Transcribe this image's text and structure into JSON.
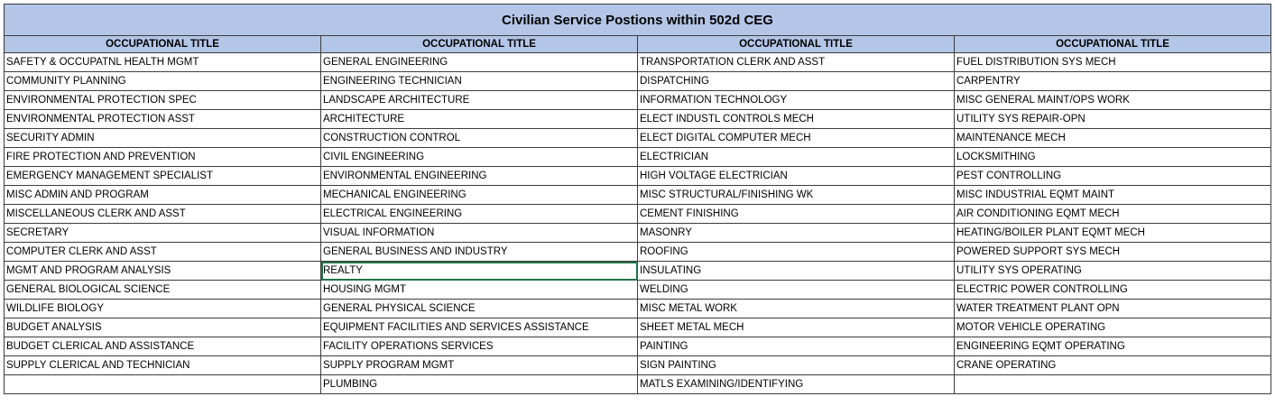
{
  "title": "Civilian Service Postions within 502d CEG",
  "header": "OCCUPATIONAL TITLE",
  "columns": [
    [
      "SAFETY & OCCUPATNL HEALTH MGMT",
      "COMMUNITY PLANNING",
      "ENVIRONMENTAL PROTECTION SPEC",
      "ENVIRONMENTAL PROTECTION ASST",
      "SECURITY ADMIN",
      "FIRE PROTECTION AND PREVENTION",
      "EMERGENCY MANAGEMENT SPECIALIST",
      "MISC ADMIN AND PROGRAM",
      "MISCELLANEOUS CLERK AND ASST",
      "SECRETARY",
      "COMPUTER CLERK AND ASST",
      "MGMT AND PROGRAM ANALYSIS",
      "GENERAL BIOLOGICAL SCIENCE",
      "WILDLIFE BIOLOGY",
      "BUDGET ANALYSIS",
      "BUDGET CLERICAL AND ASSISTANCE",
      "SUPPLY CLERICAL AND TECHNICIAN",
      ""
    ],
    [
      "GENERAL ENGINEERING",
      "ENGINEERING TECHNICIAN",
      "LANDSCAPE ARCHITECTURE",
      "ARCHITECTURE",
      "CONSTRUCTION CONTROL",
      "CIVIL ENGINEERING",
      "ENVIRONMENTAL ENGINEERING",
      "MECHANICAL ENGINEERING",
      "ELECTRICAL ENGINEERING",
      "VISUAL INFORMATION",
      "GENERAL BUSINESS AND INDUSTRY",
      "REALTY",
      "HOUSING MGMT",
      "GENERAL PHYSICAL SCIENCE",
      "EQUIPMENT FACILITIES AND SERVICES ASSISTANCE",
      "FACILITY OPERATIONS SERVICES",
      "SUPPLY PROGRAM MGMT",
      "PLUMBING"
    ],
    [
      "TRANSPORTATION CLERK AND ASST",
      "DISPATCHING",
      "INFORMATION TECHNOLOGY",
      "ELECT INDUSTL CONTROLS MECH",
      "ELECT DIGITAL COMPUTER MECH",
      "ELECTRICIAN",
      "HIGH VOLTAGE ELECTRICIAN",
      "MISC STRUCTURAL/FINISHING WK",
      "CEMENT FINISHING",
      "MASONRY",
      "ROOFING",
      "INSULATING",
      "WELDING",
      "MISC METAL WORK",
      "SHEET METAL MECH",
      "PAINTING",
      "SIGN PAINTING",
      "MATLS EXAMINING/IDENTIFYING"
    ],
    [
      "FUEL DISTRIBUTION SYS MECH",
      "CARPENTRY",
      "MISC GENERAL MAINT/OPS WORK",
      "UTILITY SYS REPAIR-OPN",
      "MAINTENANCE MECH",
      "LOCKSMITHING",
      "PEST CONTROLLING",
      "MISC INDUSTRIAL EQMT MAINT",
      "AIR CONDITIONING EQMT MECH",
      "HEATING/BOILER PLANT EQMT MECH",
      "POWERED SUPPORT SYS MECH",
      "UTILITY SYS OPERATING",
      "ELECTRIC POWER CONTROLLING",
      "WATER TREATMENT PLANT OPN",
      "MOTOR VEHICLE OPERATING",
      "ENGINEERING EQMT OPERATING",
      "CRANE OPERATING",
      ""
    ]
  ],
  "colors": {
    "header_fill": "#b4c6e7",
    "grid_line": "#3c3c3c",
    "selection": "#217346"
  }
}
